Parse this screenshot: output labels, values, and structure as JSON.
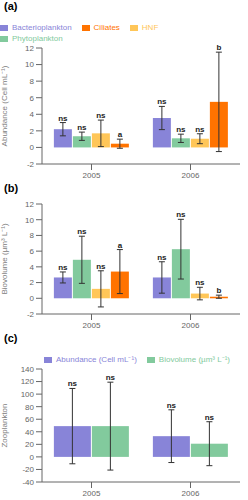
{
  "chart_data": [
    {
      "type": "bar",
      "title": "(a)",
      "y_label": "Abundance (Cell mL⁻¹)",
      "categories": [
        "2005",
        "2006"
      ],
      "ylim": [
        -2,
        12
      ],
      "yticks": [
        -2,
        0,
        2,
        4,
        6,
        8,
        10,
        12
      ],
      "legend": "upper left",
      "series": [
        {
          "name": "Bacterioplankton",
          "color": "#8884d8",
          "values": [
            2.2,
            3.55
          ],
          "errors": [
            0.8,
            1.4
          ],
          "annotations": [
            "ns",
            "ns"
          ]
        },
        {
          "name": "Phytoplankton",
          "color": "#82ca9d",
          "values": [
            1.35,
            1.1
          ],
          "errors": [
            0.5,
            0.5
          ],
          "annotations": [
            "ns",
            "ns"
          ]
        },
        {
          "name": "HNF",
          "color": "#ffc658",
          "values": [
            1.7,
            1.05
          ],
          "errors": [
            1.6,
            0.6
          ],
          "annotations": [
            "ns",
            "ns"
          ]
        },
        {
          "name": "Ciliates",
          "color": "#ff7300",
          "values": [
            0.45,
            5.5
          ],
          "errors": [
            0.55,
            6.0
          ],
          "annotations": [
            "a",
            "b"
          ]
        }
      ]
    },
    {
      "type": "bar",
      "title": "(b)",
      "y_label": "Biovolume (µm³ L⁻¹)",
      "categories": [
        "2005",
        "2006"
      ],
      "ylim": [
        -2,
        12
      ],
      "yticks": [
        -2,
        0,
        2,
        4,
        6,
        8,
        10,
        12
      ],
      "series": [
        {
          "color": "#8884d8",
          "values": [
            2.65,
            2.65
          ],
          "errors": [
            0.7,
            2.0
          ],
          "annotations": [
            "ns",
            "ns"
          ]
        },
        {
          "color": "#82ca9d",
          "values": [
            4.9,
            6.25
          ],
          "errors": [
            3.0,
            3.8
          ],
          "annotations": [
            "ns",
            "ns"
          ]
        },
        {
          "color": "#ffc658",
          "values": [
            1.2,
            0.6
          ],
          "errors": [
            2.3,
            0.8
          ],
          "annotations": [
            "ns",
            "ns"
          ]
        },
        {
          "color": "#ff7300",
          "values": [
            3.4,
            0.2
          ],
          "errors": [
            2.8,
            0.2
          ],
          "annotations": [
            "a",
            "b"
          ]
        }
      ]
    },
    {
      "type": "bar",
      "title": "(c)",
      "y_label": "Zooplankton",
      "categories": [
        "2005",
        "2006"
      ],
      "ylim": [
        -40,
        140
      ],
      "yticks": [
        -40,
        -20,
        0,
        20,
        40,
        60,
        80,
        100,
        120,
        140
      ],
      "legend": "upper right",
      "series": [
        {
          "name": "Abundance (Cell mL⁻¹)",
          "color": "#8884d8",
          "values": [
            49,
            33
          ],
          "errors": [
            60,
            42
          ],
          "annotations": [
            "ns",
            "ns"
          ]
        },
        {
          "name": "Biovolume (µm³ L⁻¹)",
          "color": "#82ca9d",
          "values": [
            49,
            21
          ],
          "errors": [
            70,
            35
          ],
          "annotations": [
            "ns",
            "ns"
          ]
        }
      ]
    }
  ]
}
